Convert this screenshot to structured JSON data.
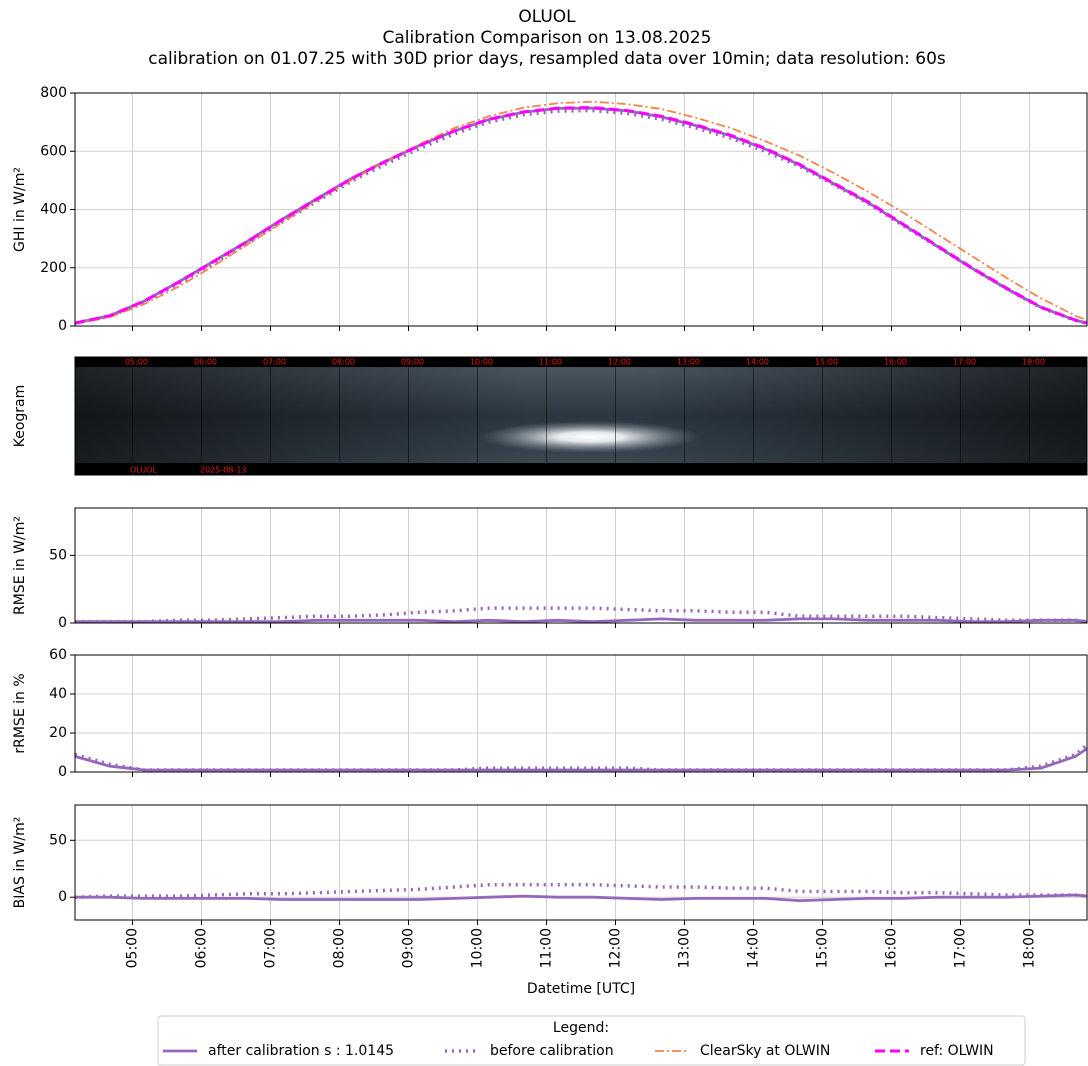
{
  "chart_data": {
    "type": "line",
    "title": "OLUOL",
    "subtitle": "Calibration Comparison on 13.08.2025",
    "subtitle2": "calibration on 01.07.25 with 30D prior days, resampled data over 10min; data resolution: 60s",
    "xlabel": "Datetime [UTC]",
    "x": [
      "04:10",
      "04:40",
      "05:10",
      "05:40",
      "06:10",
      "06:40",
      "07:10",
      "07:40",
      "08:10",
      "08:40",
      "09:10",
      "09:40",
      "10:10",
      "10:40",
      "11:10",
      "11:40",
      "12:10",
      "12:40",
      "13:10",
      "13:40",
      "14:10",
      "14:40",
      "15:10",
      "15:40",
      "16:10",
      "16:40",
      "17:10",
      "17:40",
      "18:10",
      "18:40",
      "18:50"
    ],
    "xlim": [
      "04:10",
      "18:50"
    ],
    "xticks": [
      "05:00",
      "06:00",
      "07:00",
      "08:00",
      "09:00",
      "10:00",
      "11:00",
      "12:00",
      "13:00",
      "14:00",
      "15:00",
      "16:00",
      "17:00",
      "18:00"
    ],
    "grid": true,
    "legend_title": "Legend:",
    "legend_position": "bottom",
    "panels": [
      {
        "type": "line",
        "ylabel": "GHI in W/m²",
        "ylim": [
          0,
          800
        ],
        "yticks": [
          0,
          200,
          400,
          600,
          800
        ],
        "series": [
          {
            "name": "after calibration s : 1.0145",
            "color": "#9467bd",
            "style": "solid",
            "values": [
              10,
              35,
              85,
              151,
              221,
              291,
              366,
              436,
              506,
              566,
              621,
              670,
              709,
              734,
              747,
              748,
              739,
              718,
              688,
              653,
              608,
              553,
              488,
              423,
              348,
              273,
              198,
              128,
              64,
              20,
              10
            ]
          },
          {
            "name": "before calibration",
            "color": "#9467bd",
            "style": "dotted",
            "values": [
              10,
              33,
              82,
              146,
              214,
              283,
              357,
              427,
              496,
              556,
              610,
              660,
              700,
              725,
              738,
              740,
              730,
              710,
              680,
              645,
              600,
              548,
              485,
              420,
              345,
              272,
              198,
              128,
              63,
              19,
              9
            ]
          },
          {
            "name": "ClearSky at OLWIN",
            "color": "#f4844c",
            "style": "dashdot",
            "values": [
              8,
              30,
              75,
              135,
              205,
              280,
              355,
              430,
              500,
              565,
              625,
              680,
              720,
              750,
              765,
              770,
              762,
              745,
              715,
              680,
              635,
              585,
              525,
              460,
              390,
              315,
              240,
              165,
              95,
              35,
              20
            ]
          },
          {
            "name": "ref: OLWIN",
            "color": "#ff00ff",
            "style": "dashed",
            "values": [
              10,
              35,
              85,
              150,
              220,
              290,
              365,
              435,
              505,
              565,
              620,
              670,
              710,
              735,
              748,
              750,
              740,
              720,
              690,
              655,
              610,
              555,
              490,
              425,
              350,
              275,
              200,
              130,
              65,
              20,
              10
            ]
          }
        ]
      },
      {
        "type": "image",
        "ylabel": "Keogram",
        "keogram_labels": [
          "05:00",
          "06:00",
          "07:00",
          "08:00",
          "09:00",
          "10:00",
          "11:00",
          "12:00",
          "13:00",
          "14:00",
          "15:00",
          "16:00",
          "17:00",
          "18:00"
        ],
        "keogram_station": "OLUOL",
        "keogram_date": "2025-08-13"
      },
      {
        "type": "line",
        "ylabel": "RMSE in W/m²",
        "ylim": [
          0,
          85
        ],
        "yticks": [
          0,
          50
        ],
        "series": [
          {
            "name": "after calibration s : 1.0145",
            "color": "#9467bd",
            "style": "solid",
            "values": [
              1,
              1,
              1,
              1,
              1,
              1,
              1,
              2,
              2,
              2,
              2,
              1,
              2,
              1,
              2,
              1,
              2,
              3,
              2,
              2,
              2,
              3,
              3,
              2,
              2,
              2,
              1,
              1,
              2,
              2,
              1
            ]
          },
          {
            "name": "before calibration",
            "color": "#9467bd",
            "style": "dotted",
            "values": [
              1,
              1,
              1,
              2,
              2,
              3,
              4,
              5,
              5,
              6,
              8,
              9,
              11,
              11,
              11,
              11,
              10,
              9,
              9,
              8,
              8,
              5,
              5,
              5,
              5,
              4,
              3,
              2,
              2,
              2,
              1
            ]
          }
        ]
      },
      {
        "type": "line",
        "ylabel": "rRMSE in %",
        "ylim": [
          0,
          60
        ],
        "yticks": [
          0,
          20,
          40,
          60
        ],
        "series": [
          {
            "name": "after calibration s : 1.0145",
            "color": "#9467bd",
            "style": "solid",
            "values": [
              8,
              3,
              1,
              1,
              1,
              1,
              1,
              1,
              1,
              1,
              1,
              1,
              1,
              1,
              1,
              1,
              1,
              1,
              1,
              1,
              1,
              1,
              1,
              1,
              1,
              1,
              1,
              1,
              2,
              8,
              12
            ]
          },
          {
            "name": "before calibration",
            "color": "#9467bd",
            "style": "dotted",
            "values": [
              9,
              4,
              1,
              1,
              1,
              1,
              1,
              1,
              1,
              1,
              1,
              1,
              2,
              2,
              2,
              2,
              2,
              1,
              1,
              1,
              1,
              1,
              1,
              1,
              1,
              1,
              1,
              1,
              3,
              9,
              14
            ]
          }
        ]
      },
      {
        "type": "line",
        "ylabel": "BIAS in W/m²",
        "ylim": [
          -20,
          81
        ],
        "yticks": [
          0,
          50
        ],
        "series": [
          {
            "name": "after calibration s : 1.0145",
            "color": "#9467bd",
            "style": "solid",
            "values": [
              0,
              0,
              -1,
              -1,
              -1,
              -1,
              -2,
              -2,
              -2,
              -2,
              -2,
              -1,
              0,
              1,
              0,
              0,
              -1,
              -2,
              -1,
              -1,
              -1,
              -3,
              -2,
              -1,
              -1,
              0,
              0,
              0,
              1,
              2,
              1
            ]
          },
          {
            "name": "before calibration",
            "color": "#9467bd",
            "style": "dotted",
            "values": [
              0,
              1,
              1,
              1,
              2,
              3,
              3,
              4,
              5,
              6,
              7,
              9,
              11,
              11,
              11,
              11,
              10,
              9,
              9,
              8,
              8,
              5,
              5,
              5,
              4,
              4,
              3,
              2,
              2,
              2,
              1
            ]
          }
        ]
      }
    ]
  }
}
